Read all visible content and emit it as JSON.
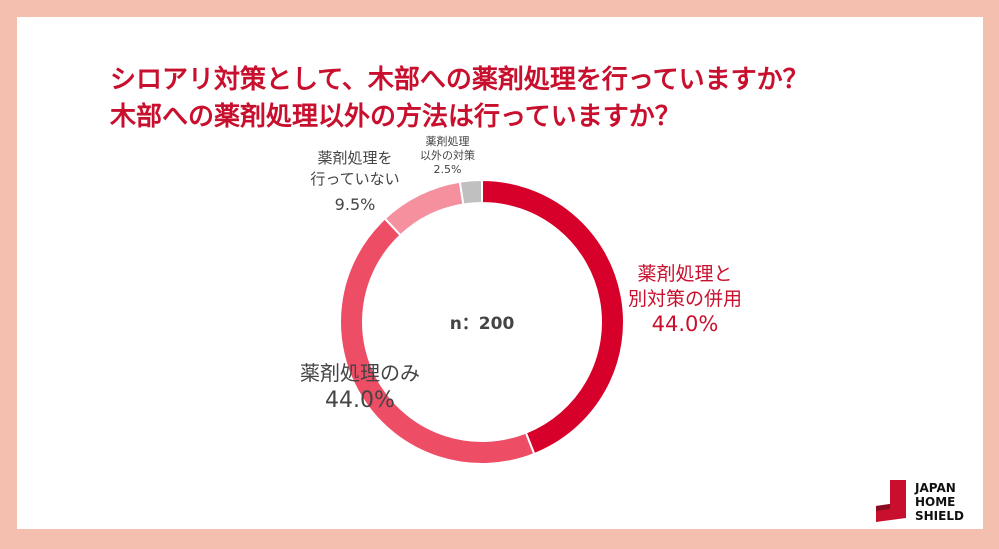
{
  "title": {
    "line1": "シロアリ対策として、木部への薬剤処理を行っていますか？",
    "line2": "木部への薬剤処理以外の方法は行っていますか？"
  },
  "center_label": "n：200",
  "logo": {
    "line1": "JAPAN",
    "line2": "HOME",
    "line3": "SHIELD"
  },
  "chart_data": {
    "type": "pie",
    "donut": true,
    "n": "n：200",
    "slices": [
      {
        "label_lines": [
          "薬剤処理と",
          "別対策の併用"
        ],
        "value": 44.0,
        "pct_text": "44.0%",
        "color": "#d6002b"
      },
      {
        "label_lines": [
          "薬剤処理のみ"
        ],
        "value": 44.0,
        "pct_text": "44.0%",
        "color": "#ee4d66"
      },
      {
        "label_lines": [
          "薬剤処理を",
          "行っていない"
        ],
        "value": 9.5,
        "pct_text": "9.5%",
        "color": "#f5909e"
      },
      {
        "label_lines": [
          "薬剤処理",
          "以外の対策"
        ],
        "value": 2.5,
        "pct_text": "2.5%",
        "color": "#c0c0c0"
      }
    ]
  },
  "colors": {
    "background": "#f4bfae",
    "title": "#c8102e",
    "label_dark": "#444444"
  }
}
